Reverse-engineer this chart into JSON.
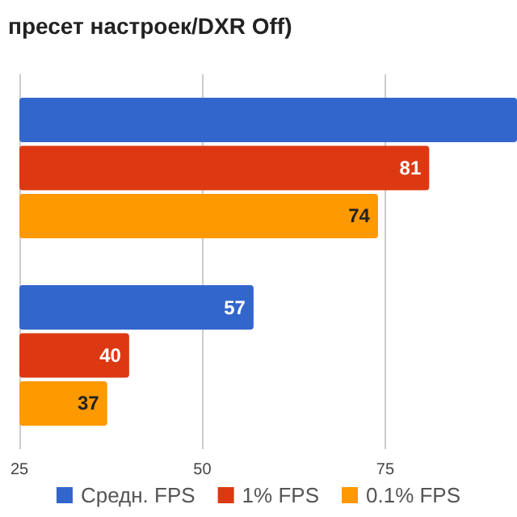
{
  "chart_data": {
    "type": "bar",
    "orientation": "horizontal",
    "title": "пресет настроек/DXR Off)",
    "categories": [
      null,
      null
    ],
    "series": [
      {
        "name": "Средн. FPS",
        "color": "#3366cc",
        "values": [
          93,
          57
        ],
        "value_labels": [
          null,
          "57"
        ]
      },
      {
        "name": "1% FPS",
        "color": "#dc3912",
        "values": [
          81,
          40
        ],
        "value_labels": [
          "81",
          "40"
        ]
      },
      {
        "name": "0.1% FPS",
        "color": "#ff9900",
        "values": [
          74,
          37
        ],
        "value_labels": [
          "74",
          "37"
        ]
      }
    ],
    "xlim": [
      25,
      93
    ],
    "xticks": [
      25,
      50,
      75
    ],
    "grid": "x",
    "legend": "bottom"
  }
}
